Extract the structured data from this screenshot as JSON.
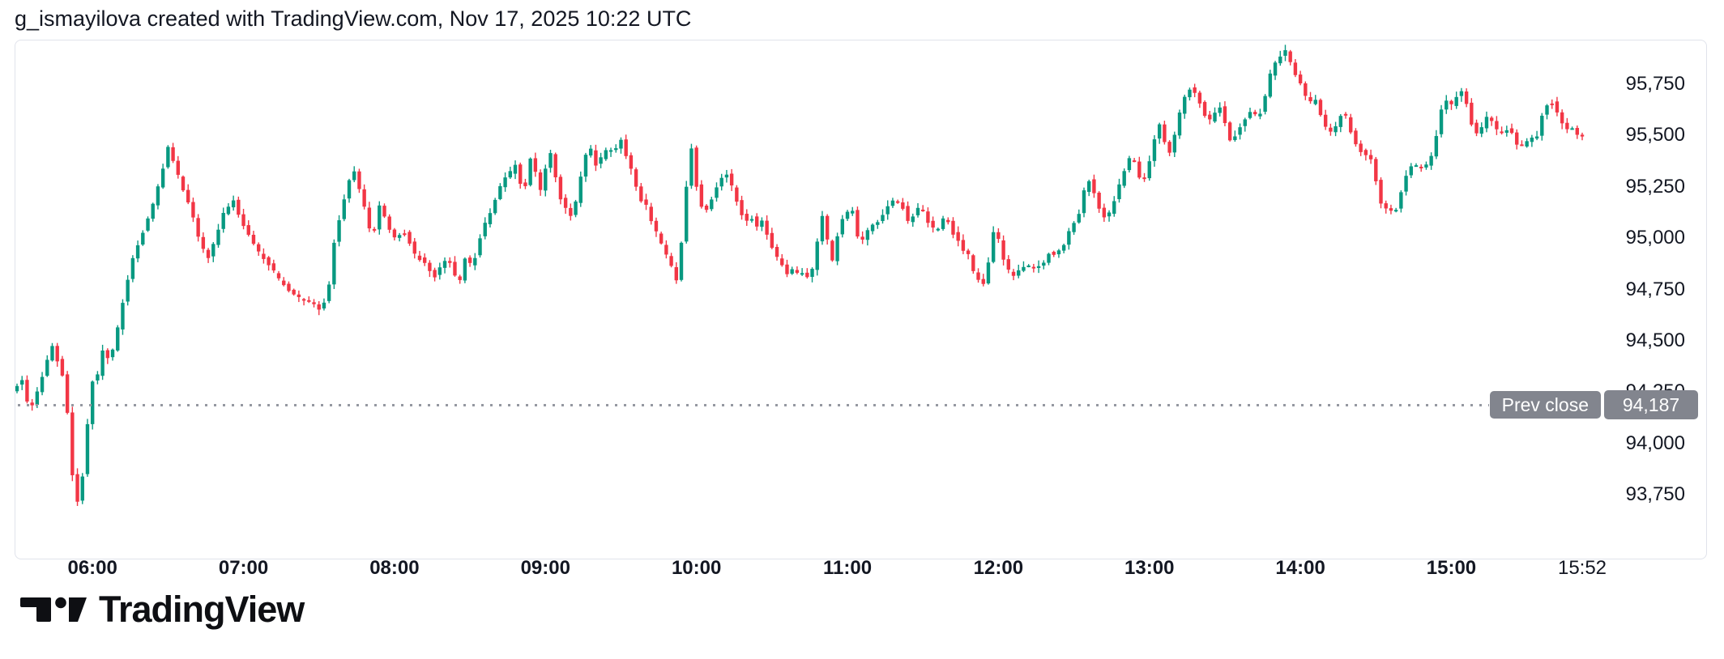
{
  "header": {
    "title": "g_ismayilova created with TradingView.com, Nov 17, 2025 10:22 UTC"
  },
  "prev_close": {
    "label": "Prev close",
    "value": "94,187",
    "price": 94187
  },
  "footer": {
    "brand": "TradingView",
    "icon": "tradingview-logo-icon"
  },
  "colors": {
    "up": "#089981",
    "down": "#f23645",
    "axis_text": "#131722",
    "widget_border": "#e0e3eb",
    "badge_bg": "#82858e",
    "badge_text": "#ffffff",
    "dotted_line": "#9598a1",
    "background": "#ffffff"
  },
  "chart_data": {
    "type": "candlestick",
    "title": "",
    "interval_minutes": 2,
    "session_start": "05:30",
    "session_end": "15:52",
    "grid": false,
    "legend_position": "none",
    "prev_close": 94187,
    "y_axis": {
      "side": "right",
      "range": [
        93660,
        95960
      ],
      "ticks": [
        {
          "label": "95,750",
          "value": 95750
        },
        {
          "label": "95,500",
          "value": 95500
        },
        {
          "label": "95,250",
          "value": 95250
        },
        {
          "label": "95,000",
          "value": 95000
        },
        {
          "label": "94,750",
          "value": 94750
        },
        {
          "label": "94,500",
          "value": 94500
        },
        {
          "label": "94,250",
          "value": 94250
        },
        {
          "label": "94,000",
          "value": 94000
        },
        {
          "label": "93,750",
          "value": 93750
        }
      ]
    },
    "x_axis": {
      "ticks": [
        {
          "label": "06:00",
          "minute": 30,
          "bold": true
        },
        {
          "label": "07:00",
          "minute": 90,
          "bold": true
        },
        {
          "label": "08:00",
          "minute": 150,
          "bold": true
        },
        {
          "label": "09:00",
          "minute": 210,
          "bold": true
        },
        {
          "label": "10:00",
          "minute": 270,
          "bold": true
        },
        {
          "label": "11:00",
          "minute": 330,
          "bold": true
        },
        {
          "label": "12:00",
          "minute": 390,
          "bold": true
        },
        {
          "label": "13:00",
          "minute": 450,
          "bold": true
        },
        {
          "label": "14:00",
          "minute": 510,
          "bold": true
        },
        {
          "label": "15:00",
          "minute": 570,
          "bold": true
        },
        {
          "label": "15:52",
          "minute": 622,
          "bold": false
        }
      ]
    },
    "price_path": [
      [
        0,
        94260
      ],
      [
        4,
        94310
      ],
      [
        7,
        94150
      ],
      [
        10,
        94250
      ],
      [
        16,
        94480
      ],
      [
        20,
        94330
      ],
      [
        22,
        94150
      ],
      [
        23,
        93950
      ],
      [
        25,
        93750
      ],
      [
        27,
        93690
      ],
      [
        29,
        94000
      ],
      [
        32,
        94300
      ],
      [
        34,
        94330
      ],
      [
        36,
        94450
      ],
      [
        39,
        94400
      ],
      [
        42,
        94560
      ],
      [
        45,
        94750
      ],
      [
        48,
        94900
      ],
      [
        51,
        95000
      ],
      [
        55,
        95120
      ],
      [
        58,
        95250
      ],
      [
        62,
        95440
      ],
      [
        65,
        95350
      ],
      [
        67,
        95260
      ],
      [
        70,
        95180
      ],
      [
        73,
        95060
      ],
      [
        75,
        94960
      ],
      [
        78,
        94905
      ],
      [
        81,
        95000
      ],
      [
        84,
        95120
      ],
      [
        88,
        95190
      ],
      [
        91,
        95080
      ],
      [
        95,
        95000
      ],
      [
        98,
        94930
      ],
      [
        101,
        94890
      ],
      [
        106,
        94800
      ],
      [
        111,
        94730
      ],
      [
        115,
        94700
      ],
      [
        120,
        94680
      ],
      [
        123,
        94646
      ],
      [
        126,
        94780
      ],
      [
        128,
        94980
      ],
      [
        131,
        95150
      ],
      [
        134,
        95280
      ],
      [
        136,
        95320
      ],
      [
        138,
        95240
      ],
      [
        141,
        95100
      ],
      [
        143,
        94990
      ],
      [
        146,
        95160
      ],
      [
        148,
        95100
      ],
      [
        151,
        95020
      ],
      [
        153,
        94990
      ],
      [
        155,
        95050
      ],
      [
        158,
        94980
      ],
      [
        160,
        94920
      ],
      [
        163,
        94890
      ],
      [
        166,
        94840
      ],
      [
        168,
        94815
      ],
      [
        171,
        94870
      ],
      [
        173,
        94910
      ],
      [
        176,
        94820
      ],
      [
        178,
        94800
      ],
      [
        180,
        94900
      ],
      [
        183,
        94860
      ],
      [
        185,
        94960
      ],
      [
        187,
        95050
      ],
      [
        190,
        95120
      ],
      [
        193,
        95220
      ],
      [
        195,
        95280
      ],
      [
        198,
        95320
      ],
      [
        200,
        95355
      ],
      [
        202,
        95270
      ],
      [
        203,
        95180
      ],
      [
        205,
        95340
      ],
      [
        207,
        95445
      ],
      [
        208,
        95320
      ],
      [
        210,
        95230
      ],
      [
        211,
        95310
      ],
      [
        214,
        95415
      ],
      [
        216,
        95300
      ],
      [
        218,
        95190
      ],
      [
        221,
        95130
      ],
      [
        223,
        95100
      ],
      [
        225,
        95250
      ],
      [
        228,
        95400
      ],
      [
        230,
        95430
      ],
      [
        232,
        95360
      ],
      [
        234,
        95390
      ],
      [
        237,
        95440
      ],
      [
        239,
        95410
      ],
      [
        242,
        95475
      ],
      [
        244,
        95400
      ],
      [
        247,
        95300
      ],
      [
        249,
        95200
      ],
      [
        252,
        95160
      ],
      [
        254,
        95080
      ],
      [
        257,
        95000
      ],
      [
        259,
        94940
      ],
      [
        262,
        94860
      ],
      [
        264,
        94790
      ],
      [
        266,
        94980
      ],
      [
        268,
        95250
      ],
      [
        270,
        95435
      ],
      [
        271,
        95330
      ],
      [
        273,
        95180
      ],
      [
        275,
        95130
      ],
      [
        277,
        95160
      ],
      [
        279,
        95230
      ],
      [
        282,
        95290
      ],
      [
        284,
        95310
      ],
      [
        287,
        95220
      ],
      [
        289,
        95150
      ],
      [
        291,
        95080
      ],
      [
        294,
        95100
      ],
      [
        296,
        95060
      ],
      [
        298,
        95080
      ],
      [
        301,
        94990
      ],
      [
        303,
        94920
      ],
      [
        306,
        94870
      ],
      [
        308,
        94830
      ],
      [
        310,
        94850
      ],
      [
        313,
        94820
      ],
      [
        315,
        94840
      ],
      [
        317,
        94790
      ],
      [
        319,
        94900
      ],
      [
        321,
        95060
      ],
      [
        322,
        95115
      ],
      [
        324,
        94990
      ],
      [
        326,
        94890
      ],
      [
        327,
        94970
      ],
      [
        329,
        95060
      ],
      [
        331,
        95120
      ],
      [
        334,
        95140
      ],
      [
        335,
        95040
      ],
      [
        337,
        94975
      ],
      [
        339,
        95010
      ],
      [
        341,
        95060
      ],
      [
        344,
        95085
      ],
      [
        346,
        95120
      ],
      [
        348,
        95160
      ],
      [
        350,
        95185
      ],
      [
        352,
        95170
      ],
      [
        354,
        95150
      ],
      [
        356,
        95080
      ],
      [
        358,
        95110
      ],
      [
        361,
        95160
      ],
      [
        363,
        95100
      ],
      [
        365,
        95060
      ],
      [
        367,
        95030
      ],
      [
        369,
        95060
      ],
      [
        371,
        95120
      ],
      [
        373,
        95040
      ],
      [
        376,
        94990
      ],
      [
        378,
        94940
      ],
      [
        380,
        94920
      ],
      [
        382,
        94840
      ],
      [
        384,
        94800
      ],
      [
        386,
        94775
      ],
      [
        388,
        94880
      ],
      [
        390,
        95030
      ],
      [
        392,
        94990
      ],
      [
        394,
        94900
      ],
      [
        396,
        94840
      ],
      [
        398,
        94820
      ],
      [
        401,
        94850
      ],
      [
        403,
        94870
      ],
      [
        406,
        94850
      ],
      [
        408,
        94865
      ],
      [
        410,
        94880
      ],
      [
        412,
        94930
      ],
      [
        414,
        94925
      ],
      [
        417,
        94940
      ],
      [
        419,
        95000
      ],
      [
        421,
        95060
      ],
      [
        424,
        95120
      ],
      [
        426,
        95230
      ],
      [
        427,
        95300
      ],
      [
        429,
        95260
      ],
      [
        431,
        95180
      ],
      [
        433,
        95120
      ],
      [
        435,
        95090
      ],
      [
        437,
        95150
      ],
      [
        439,
        95220
      ],
      [
        441,
        95290
      ],
      [
        443,
        95360
      ],
      [
        445,
        95410
      ],
      [
        447,
        95340
      ],
      [
        449,
        95260
      ],
      [
        450,
        95290
      ],
      [
        452,
        95380
      ],
      [
        454,
        95480
      ],
      [
        456,
        95550
      ],
      [
        458,
        95470
      ],
      [
        459,
        95390
      ],
      [
        461,
        95450
      ],
      [
        463,
        95560
      ],
      [
        465,
        95660
      ],
      [
        467,
        95720
      ],
      [
        469,
        95740
      ],
      [
        471,
        95680
      ],
      [
        473,
        95640
      ],
      [
        475,
        95560
      ],
      [
        477,
        95590
      ],
      [
        479,
        95630
      ],
      [
        481,
        95650
      ],
      [
        482,
        95560
      ],
      [
        484,
        95480
      ],
      [
        486,
        95500
      ],
      [
        489,
        95560
      ],
      [
        491,
        95600
      ],
      [
        493,
        95620
      ],
      [
        495,
        95580
      ],
      [
        497,
        95640
      ],
      [
        499,
        95750
      ],
      [
        501,
        95840
      ],
      [
        503,
        95870
      ],
      [
        505,
        95900
      ],
      [
        507,
        95920
      ],
      [
        508,
        95860
      ],
      [
        510,
        95800
      ],
      [
        512,
        95760
      ],
      [
        514,
        95690
      ],
      [
        516,
        95660
      ],
      [
        517,
        95700
      ],
      [
        519,
        95640
      ],
      [
        521,
        95570
      ],
      [
        523,
        95520
      ],
      [
        525,
        95510
      ],
      [
        527,
        95570
      ],
      [
        529,
        95630
      ],
      [
        531,
        95560
      ],
      [
        533,
        95480
      ],
      [
        535,
        95430
      ],
      [
        537,
        95420
      ],
      [
        538,
        95400
      ],
      [
        540,
        95390
      ],
      [
        542,
        95280
      ],
      [
        544,
        95170
      ],
      [
        546,
        95140
      ],
      [
        547,
        95160
      ],
      [
        549,
        95100
      ],
      [
        551,
        95180
      ],
      [
        553,
        95280
      ],
      [
        555,
        95340
      ],
      [
        557,
        95370
      ],
      [
        559,
        95330
      ],
      [
        561,
        95350
      ],
      [
        562,
        95360
      ],
      [
        564,
        95400
      ],
      [
        566,
        95500
      ],
      [
        568,
        95620
      ],
      [
        570,
        95670
      ],
      [
        572,
        95650
      ],
      [
        574,
        95690
      ],
      [
        576,
        95720
      ],
      [
        578,
        95660
      ],
      [
        580,
        95560
      ],
      [
        582,
        95510
      ],
      [
        584,
        95540
      ],
      [
        585,
        95580
      ],
      [
        587,
        95590
      ],
      [
        589,
        95550
      ],
      [
        591,
        95500
      ],
      [
        593,
        95520
      ],
      [
        595,
        95540
      ],
      [
        597,
        95480
      ],
      [
        599,
        95440
      ],
      [
        601,
        95460
      ],
      [
        603,
        95490
      ],
      [
        605,
        95480
      ],
      [
        607,
        95520
      ],
      [
        608,
        95600
      ],
      [
        610,
        95650
      ],
      [
        612,
        95660
      ],
      [
        614,
        95610
      ],
      [
        616,
        95560
      ],
      [
        618,
        95530
      ],
      [
        620,
        95530
      ],
      [
        622,
        95500
      ]
    ]
  }
}
